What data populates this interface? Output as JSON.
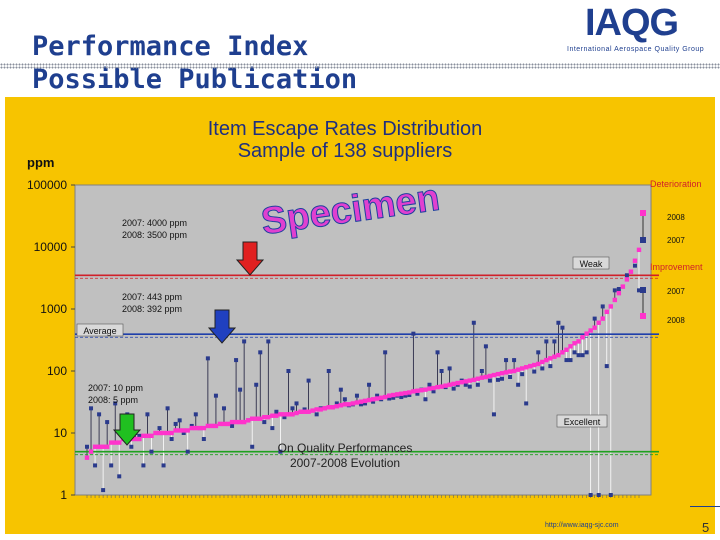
{
  "header": {
    "title_line1": "Performance Index",
    "title_line2": "Possible Publication",
    "logo_main": "IAQG",
    "logo_sub": "International Aerospace Quality Group"
  },
  "footer": {
    "url": "http://www.iaqg-sjc.com",
    "page_number": "5"
  },
  "colors": {
    "background_panel": "#f7c400",
    "plot_area": "#c0c0c0",
    "sorted_series": "#ff33cc",
    "supplier_series": "#2a3a8c",
    "weak_line": "#d0202a",
    "average_line": "#1f3faa",
    "excellent_line": "#1ea11e",
    "red_arrow": "#e02020",
    "blue_arrow": "#2040c0",
    "green_arrow": "#20c020"
  },
  "annotations": {
    "watermark": "Specimen",
    "deterioration": "Deterioration",
    "improvement": "Improvement",
    "legend_2008_top": "2008",
    "legend_2007_top": "2007",
    "legend_2007_bottom": "2007",
    "legend_2008_bottom": "2008",
    "weak_label": "Weak",
    "average_label": "Average",
    "excellent_label": "Excellent",
    "weak_2007": "2007: 4000 ppm",
    "weak_2008": "2008: 3500 ppm",
    "avg_2007": "2007: 443 ppm",
    "avg_2008": "2008: 392 ppm",
    "exc_2007": "2007: 10 ppm",
    "exc_2008": "2008: 5 ppm",
    "evolution_line1": "On Quality Performances",
    "evolution_line2": "2007-2008 Evolution"
  },
  "chart_data": {
    "type": "scatter",
    "title": "Item Escape Rates Distribution",
    "subtitle": "Sample of 138 suppliers",
    "ylabel": "ppm",
    "yscale": "log",
    "ylim": [
      1,
      100000
    ],
    "y_ticks": [
      100000,
      10000,
      1000,
      100,
      10,
      1
    ],
    "y_tick_labels": [
      "100000",
      "10000",
      "1000",
      "100",
      "10",
      "1"
    ],
    "grid": false,
    "suppliers": 138,
    "thresholds": [
      {
        "name": "Weak",
        "value": 3500
      },
      {
        "name": "Average",
        "value": 392
      },
      {
        "name": "Excellent",
        "value": 5
      }
    ],
    "series": [
      {
        "name": "",
        "values": [
          4,
          5,
          6,
          6,
          6,
          6,
          7,
          7,
          7,
          8,
          8,
          8,
          8,
          8,
          9,
          9,
          9,
          10,
          10,
          10,
          10,
          10,
          11,
          11,
          11,
          11,
          12,
          12,
          12,
          12,
          13,
          13,
          13,
          14,
          14,
          14,
          15,
          15,
          15,
          15,
          16,
          17,
          17,
          17,
          18,
          18,
          19,
          19,
          20,
          20,
          20,
          20,
          21,
          22,
          22,
          22,
          23,
          24,
          24,
          25,
          26,
          26,
          27,
          28,
          29,
          29,
          30,
          31,
          32,
          33,
          34,
          35,
          36,
          37,
          38,
          40,
          41,
          42,
          43,
          44,
          45,
          47,
          48,
          49,
          50,
          52,
          53,
          55,
          56,
          58,
          60,
          62,
          64,
          66,
          68,
          70,
          72,
          75,
          78,
          80,
          83,
          86,
          89,
          92,
          95,
          98,
          100,
          105,
          110,
          115,
          120,
          125,
          130,
          140,
          150,
          160,
          170,
          180,
          200,
          220,
          250,
          280,
          300,
          350,
          400,
          450,
          500,
          600,
          700,
          900,
          1100,
          1400,
          1800,
          2300,
          3000,
          4000,
          6000,
          9000
        ]
      },
      {
        "name": "",
        "values": [
          6,
          25,
          3,
          20,
          1.2,
          15,
          3,
          30,
          2,
          12,
          20,
          6,
          10,
          9,
          3,
          20,
          5,
          10,
          12,
          3,
          25,
          8,
          14,
          16,
          10,
          5,
          13,
          20,
          12,
          8,
          160,
          13,
          40,
          14,
          25,
          14,
          13,
          150,
          50,
          300,
          16,
          6,
          60,
          200,
          15,
          300,
          12,
          22,
          5,
          18,
          100,
          25,
          30,
          22,
          24,
          70,
          23,
          20,
          25,
          25,
          100,
          26,
          30,
          50,
          35,
          28,
          29,
          40,
          29,
          30,
          60,
          32,
          40,
          35,
          200,
          36,
          37,
          40,
          38,
          40,
          41,
          400,
          43,
          50,
          35,
          60,
          47,
          200,
          100,
          55,
          110,
          52,
          60,
          70,
          60,
          56,
          600,
          60,
          100,
          250,
          70,
          20,
          72,
          75,
          150,
          80,
          150,
          60,
          89,
          30,
          120,
          98,
          200,
          110,
          300,
          120,
          300,
          600,
          500,
          150,
          150,
          200,
          180,
          180,
          200,
          1,
          700,
          1,
          1100,
          120,
          1,
          2000,
          2100,
          2300,
          3500,
          4000,
          5000,
          2000
        ]
      }
    ]
  }
}
